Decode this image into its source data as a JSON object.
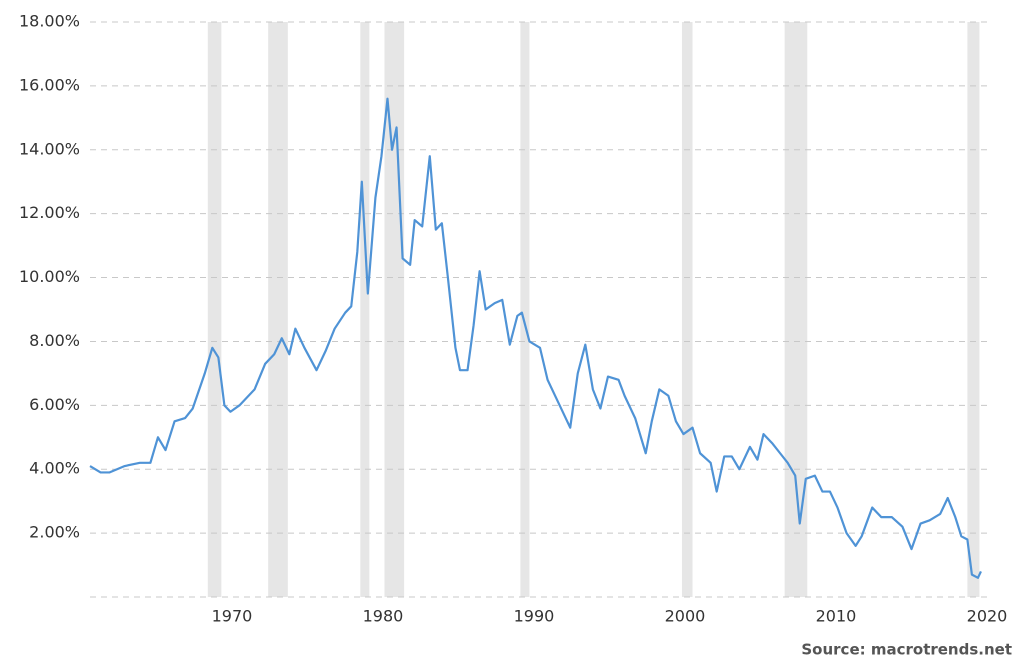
{
  "chart_data": {
    "type": "line",
    "source": "Source: macrotrends.net",
    "xlim": [
      1960.6,
      2020
    ],
    "xticks": [
      1970,
      1980,
      1990,
      2000,
      2010,
      2020
    ],
    "ylim": [
      0,
      18
    ],
    "yticks": [
      {
        "value": 2,
        "label": "2.00%"
      },
      {
        "value": 4,
        "label": "4.00%"
      },
      {
        "value": 6,
        "label": "6.00%"
      },
      {
        "value": 8,
        "label": "8.00%"
      },
      {
        "value": 10,
        "label": "10.00%"
      },
      {
        "value": 12,
        "label": "12.00%"
      },
      {
        "value": 14,
        "label": "14.00%"
      },
      {
        "value": 16,
        "label": "16.00%"
      },
      {
        "value": 18,
        "label": "18.00%"
      }
    ],
    "grid": true,
    "recessions": [
      [
        1968.4,
        1969.3
      ],
      [
        1972.4,
        1973.7
      ],
      [
        1978.5,
        1979.1
      ],
      [
        1980.1,
        1981.4
      ],
      [
        1989.1,
        1989.7
      ],
      [
        1999.8,
        2000.5
      ],
      [
        2006.6,
        2008.1
      ],
      [
        2018.7,
        2019.5
      ]
    ],
    "recession_color": "#e6e6e6",
    "x": [
      1960.6,
      1961.3,
      1961.9,
      1962.9,
      1963.9,
      1964.6,
      1965.1,
      1965.6,
      1966.2,
      1966.9,
      1967.4,
      1968.2,
      1968.7,
      1969.1,
      1969.5,
      1969.9,
      1970.5,
      1971.5,
      1972.2,
      1972.8,
      1973.3,
      1973.8,
      1974.2,
      1974.8,
      1975.6,
      1976.2,
      1976.8,
      1977.5,
      1977.9,
      1978.3,
      1978.6,
      1979.0,
      1979.5,
      1979.9,
      1980.3,
      1980.6,
      1980.9,
      1981.3,
      1981.8,
      1982.1,
      1982.6,
      1983.1,
      1983.5,
      1983.9,
      1984.3,
      1984.8,
      1985.1,
      1985.6,
      1986.0,
      1986.4,
      1986.8,
      1987.4,
      1987.9,
      1988.4,
      1988.9,
      1989.2,
      1989.7,
      1990.4,
      1990.9,
      1991.7,
      1992.4,
      1992.9,
      1993.4,
      1993.9,
      1994.4,
      1994.9,
      1995.6,
      1996.0,
      1996.7,
      1997.4,
      1997.8,
      1998.3,
      1998.9,
      1999.4,
      1999.9,
      2000.5,
      2001.0,
      2001.7,
      2002.1,
      2002.6,
      2003.1,
      2003.6,
      2004.3,
      2004.8,
      2005.2,
      2005.8,
      2006.3,
      2006.8,
      2007.3,
      2007.6,
      2008.0,
      2008.6,
      2009.1,
      2009.6,
      2010.1,
      2010.7,
      2011.3,
      2011.7,
      2012.4,
      2013.0,
      2013.7,
      2014.4,
      2015.0,
      2015.6,
      2016.2,
      2016.9,
      2017.4,
      2017.9,
      2018.3,
      2018.7,
      2019.0,
      2019.4,
      2019.6
    ],
    "series": [
      {
        "color": "#4f93d6",
        "values": [
          4.1,
          3.9,
          3.9,
          4.1,
          4.2,
          4.2,
          5.0,
          4.6,
          5.5,
          5.6,
          5.9,
          7.0,
          7.8,
          7.5,
          6.0,
          5.8,
          6.0,
          6.5,
          7.3,
          7.6,
          8.1,
          7.6,
          8.4,
          7.8,
          7.1,
          7.7,
          8.4,
          8.9,
          9.1,
          10.8,
          13.0,
          9.5,
          12.5,
          13.8,
          15.6,
          14.0,
          14.7,
          10.6,
          10.4,
          11.8,
          11.6,
          13.8,
          11.5,
          11.7,
          10.0,
          7.8,
          7.1,
          7.1,
          8.5,
          10.2,
          9.0,
          9.2,
          9.3,
          7.9,
          8.8,
          8.9,
          8.0,
          7.8,
          6.8,
          6.0,
          5.3,
          7.0,
          7.9,
          6.5,
          5.9,
          6.9,
          6.8,
          6.3,
          5.6,
          4.5,
          5.5,
          6.5,
          6.3,
          5.5,
          5.1,
          5.3,
          4.5,
          4.2,
          3.3,
          4.4,
          4.4,
          4.0,
          4.7,
          4.3,
          5.1,
          4.8,
          4.5,
          4.2,
          3.8,
          2.3,
          3.7,
          3.8,
          3.3,
          3.3,
          2.8,
          2.0,
          1.6,
          1.9,
          2.8,
          2.5,
          2.5,
          2.2,
          1.5,
          2.3,
          2.4,
          2.6,
          3.1,
          2.5,
          1.9,
          1.8,
          0.7,
          0.6,
          0.8
        ]
      }
    ]
  }
}
